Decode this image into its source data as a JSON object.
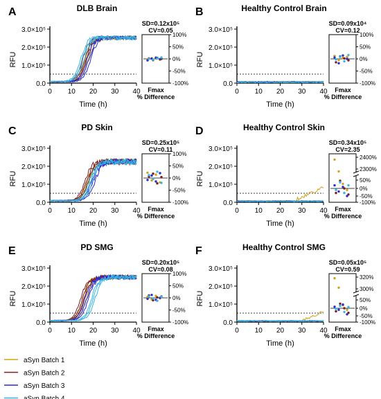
{
  "series_colors": [
    "#d4a017",
    "#7b1e1e",
    "#2b2bc9",
    "#35b6e8"
  ],
  "legend": [
    "aSyn Batch 1",
    "aSyn Batch 2",
    "aSyn Batch 3",
    "aSyn Batch 4"
  ],
  "chart_data": [
    {
      "type": "line",
      "letter": "A",
      "title": "DLB Brain",
      "xlabel": "Time (h)",
      "ylabel": "RFU",
      "xlim": [
        0,
        40
      ],
      "ylim": [
        0,
        300000
      ],
      "xticks": [
        "0",
        "10",
        "20",
        "30",
        "40"
      ],
      "yticks": [
        "0.0",
        "1.0×10⁵",
        "2.0×10⁵",
        "3.0×10⁵"
      ],
      "threshold": 50000,
      "kinetics": "positive",
      "midpoint_h": [
        17,
        16,
        18,
        15
      ],
      "plateau": 255000,
      "noise": 22000,
      "inset": {
        "sd": "SD=0.12x10⁵",
        "cv": "CV=0.05",
        "xlabel": "Fmax",
        "xlabel2": "% Difference",
        "broken": false,
        "yticks": [
          "100%",
          "50%",
          "0%",
          "-50%",
          "-100%"
        ],
        "points_pct": [
          [
            -2,
            3,
            1,
            -4
          ],
          [
            2,
            -5,
            4,
            0
          ],
          [
            -6,
            1,
            5,
            -1
          ],
          [
            0,
            -3,
            2,
            6
          ]
        ]
      }
    },
    {
      "type": "line",
      "letter": "B",
      "title": "Healthy Control Brain",
      "xlabel": "Time (h)",
      "ylabel": "RFU",
      "xlim": [
        0,
        40
      ],
      "ylim": [
        0,
        300000
      ],
      "xticks": [
        "0",
        "10",
        "20",
        "30",
        "40"
      ],
      "yticks": [
        "0.0",
        "1.0×10⁵",
        "2.0×10⁵",
        "3.0×10⁵"
      ],
      "threshold": 50000,
      "kinetics": "negative",
      "noise": 8000,
      "inset": {
        "sd": "SD=0.09x10⁴",
        "cv": "CV=0.12",
        "xlabel": "Fmax",
        "xlabel2": "% Difference",
        "broken": false,
        "yticks": [
          "100%",
          "50%",
          "0%",
          "-50%",
          "-100%"
        ],
        "points_pct": [
          [
            12,
            -5,
            4,
            8
          ],
          [
            -14,
            10,
            2,
            -6
          ],
          [
            6,
            -18,
            14,
            0
          ],
          [
            -2,
            8,
            -10,
            16
          ]
        ]
      }
    },
    {
      "type": "line",
      "letter": "C",
      "title": "PD Skin",
      "xlabel": "Time (h)",
      "ylabel": "RFU",
      "xlim": [
        0,
        40
      ],
      "ylim": [
        0,
        300000
      ],
      "xticks": [
        "0",
        "10",
        "20",
        "30",
        "40"
      ],
      "yticks": [
        "0.0",
        "1.0×10⁵",
        "2.0×10⁵",
        "3.0×10⁵"
      ],
      "threshold": 50000,
      "kinetics": "positive",
      "midpoint_h": [
        18,
        17,
        20,
        19
      ],
      "plateau": 225000,
      "noise": 25000,
      "inset": {
        "sd": "SD=0.25x10⁵",
        "cv": "CV=0.11",
        "xlabel": "Fmax",
        "xlabel2": "% Difference",
        "broken": false,
        "yticks": [
          "100%",
          "50%",
          "0%",
          "-50%",
          "-100%"
        ],
        "points_pct": [
          [
            22,
            -10,
            14,
            -18
          ],
          [
            6,
            18,
            -22,
            4
          ],
          [
            -8,
            10,
            -14,
            20
          ],
          [
            12,
            -4,
            26,
            -20
          ]
        ]
      }
    },
    {
      "type": "line",
      "letter": "D",
      "title": "Healthy Control Skin",
      "xlabel": "Time (h)",
      "ylabel": "RFU",
      "xlim": [
        0,
        40
      ],
      "ylim": [
        0,
        300000
      ],
      "xticks": [
        "0",
        "10",
        "20",
        "30",
        "40"
      ],
      "yticks": [
        "0.0",
        "1.0×10⁵",
        "2.0×10⁵",
        "3.0×10⁵"
      ],
      "threshold": 50000,
      "kinetics": "negative",
      "noise": 6000,
      "late_rise_batch": 0,
      "late_rise_start_h": 26,
      "inset": {
        "sd": "SD=0.34x10⁵",
        "cv": "CV=2.35",
        "xlabel": "Fmax",
        "xlabel2": "% Difference",
        "broken": true,
        "yticks": [
          "2400%",
          "2300%",
          "50%",
          "0%",
          "-50%",
          "-100%"
        ],
        "points_pct": [
          [
            2380,
            2280,
            30,
            -10
          ],
          [
            -30,
            50,
            0,
            -40
          ],
          [
            20,
            -20,
            10,
            -50
          ],
          [
            -10,
            40,
            -30,
            20
          ]
        ]
      }
    },
    {
      "type": "line",
      "letter": "E",
      "title": "PD SMG",
      "xlabel": "Time (h)",
      "ylabel": "RFU",
      "xlim": [
        0,
        40
      ],
      "ylim": [
        0,
        300000
      ],
      "xticks": [
        "0",
        "10",
        "20",
        "30",
        "40"
      ],
      "yticks": [
        "0.0",
        "1.0×10⁵",
        "2.0×10⁵",
        "3.0×10⁵"
      ],
      "threshold": 50000,
      "kinetics": "positive",
      "midpoint_h": [
        16,
        15,
        17,
        20
      ],
      "plateau": 250000,
      "noise": 20000,
      "inset": {
        "sd": "SD=0.20x10⁵",
        "cv": "CV=0.08",
        "xlabel": "Fmax",
        "xlabel2": "% Difference",
        "broken": false,
        "yticks": [
          "100%",
          "50%",
          "0%",
          "-50%",
          "-100%"
        ],
        "points_pct": [
          [
            4,
            -6,
            8,
            -2
          ],
          [
            10,
            -10,
            2,
            6
          ],
          [
            -4,
            12,
            -8,
            0
          ],
          [
            6,
            -2,
            -12,
            4
          ]
        ]
      }
    },
    {
      "type": "line",
      "letter": "F",
      "title": "Healthy Control SMG",
      "xlabel": "Time (h)",
      "ylabel": "RFU",
      "xlim": [
        0,
        40
      ],
      "ylim": [
        0,
        300000
      ],
      "xticks": [
        "0",
        "10",
        "20",
        "30",
        "40"
      ],
      "yticks": [
        "0.0",
        "1.0×10⁵",
        "2.0×10⁵",
        "3.0×10⁵"
      ],
      "threshold": 50000,
      "kinetics": "negative",
      "noise": 6000,
      "late_rise_batch": 0,
      "late_rise_start_h": 30,
      "inset": {
        "sd": "SD=0.05x10⁵",
        "cv": "CV=0.59",
        "xlabel": "Fmax",
        "xlabel2": "% Difference",
        "broken": true,
        "yticks": [
          "320%",
          "300%",
          "50%",
          "0%",
          "-50%",
          "-100%"
        ],
        "points_pct": [
          [
            318,
            302,
            20,
            -10
          ],
          [
            -20,
            30,
            0,
            -30
          ],
          [
            10,
            -10,
            24,
            -40
          ],
          [
            -4,
            16,
            -24,
            8
          ]
        ]
      }
    }
  ]
}
